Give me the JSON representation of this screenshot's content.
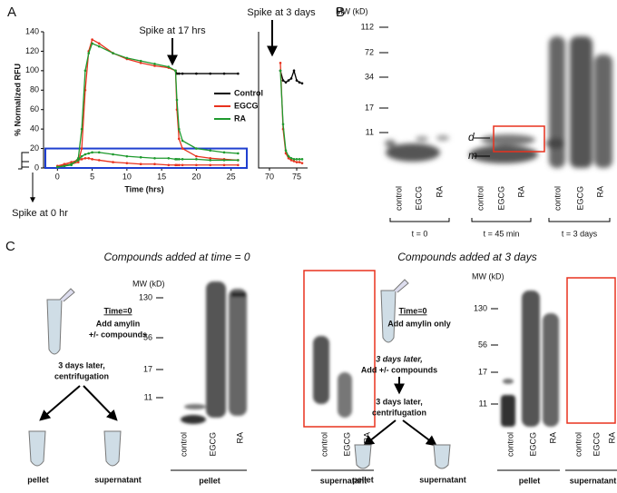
{
  "chart_data": [
    {
      "type": "line",
      "ylabel": "% Normalized RFU",
      "xlabel": "Time (hrs)",
      "x": [
        0,
        1,
        2,
        3,
        3.5,
        4,
        4.5,
        5,
        6,
        8,
        10,
        12,
        14,
        16,
        17,
        17.2,
        17.5,
        18,
        20,
        22,
        24,
        26
      ],
      "series": [
        {
          "name": "Control",
          "color": "#000000",
          "values": [
            null,
            null,
            null,
            null,
            null,
            null,
            null,
            null,
            null,
            null,
            null,
            null,
            null,
            null,
            100,
            97,
            97,
            97,
            97,
            97,
            97,
            97
          ]
        },
        {
          "name": "EGCG",
          "color": "#e8321e",
          "values": [
            2,
            3,
            4,
            6,
            20,
            80,
            120,
            132,
            128,
            118,
            112,
            108,
            105,
            103,
            100,
            60,
            30,
            20,
            12,
            10,
            9,
            8
          ]
        },
        {
          "name": "RA",
          "color": "#1f9a2e",
          "values": [
            1,
            2,
            3,
            10,
            40,
            100,
            118,
            128,
            125,
            118,
            113,
            110,
            107,
            104,
            100,
            70,
            40,
            28,
            20,
            18,
            16,
            15
          ]
        },
        {
          "color": "#e8321e",
          "values": [
            2,
            4,
            6,
            8,
            9,
            10,
            10,
            9,
            8,
            6,
            5,
            4,
            4,
            3,
            3,
            3,
            3,
            3,
            3,
            3,
            3,
            3
          ]
        },
        {
          "color": "#1f9a2e",
          "values": [
            1,
            2,
            4,
            8,
            12,
            14,
            15,
            16,
            16,
            14,
            12,
            11,
            10,
            10,
            9,
            9,
            9,
            9,
            9,
            8,
            8,
            8
          ]
        }
      ],
      "xlim": [
        -2,
        27
      ],
      "xticks": [
        0,
        5,
        10,
        15,
        20,
        25
      ],
      "ylim": [
        0,
        140
      ],
      "yticks": [
        0,
        20,
        40,
        60,
        80,
        100,
        120,
        140
      ],
      "legend": "right",
      "annotations": [
        "Spike at 17 hrs",
        "Spike at 0 hr"
      ]
    },
    {
      "type": "line",
      "x": [
        72,
        72.5,
        73,
        73.5,
        74,
        74.5,
        75,
        75.5,
        76
      ],
      "series": [
        {
          "color": "#000000",
          "values": [
            100,
            90,
            88,
            90,
            92,
            100,
            90,
            88,
            87
          ]
        },
        {
          "color": "#e8321e",
          "values": [
            108,
            40,
            15,
            10,
            8,
            7,
            6,
            6,
            5
          ]
        },
        {
          "color": "#1f9a2e",
          "values": [
            100,
            45,
            18,
            12,
            10,
            9,
            9,
            9,
            9
          ]
        }
      ],
      "xlim": [
        68,
        77
      ],
      "xticks": [
        70,
        75
      ],
      "ylim": [
        0,
        140
      ],
      "annotations": [
        "Spike at 3 days"
      ]
    }
  ],
  "panel_labels": [
    "A",
    "B",
    "C"
  ],
  "panel_b": {
    "mw_label": "MW (kD)",
    "markers": [
      112,
      72,
      34,
      17,
      11
    ],
    "band_labels": [
      "d",
      "m"
    ],
    "lanes": [
      "control",
      "EGCG",
      "RA"
    ],
    "groups": [
      "t = 0",
      "t = 45 min",
      "t = 3 days"
    ]
  },
  "panel_c": {
    "titles": [
      "Compounds added at time = 0",
      "Compounds added at 3 days"
    ],
    "protocol_left": [
      "Time=0",
      "Add amylin",
      "+/- compounds",
      "3 days later,",
      "centrifugation"
    ],
    "protocol_right": [
      "Time=0",
      "Add amylin only",
      "3 days later,",
      "Add +/- compounds",
      "3 days later,",
      "centrifugation"
    ],
    "mw_label": "MW (kD)",
    "markers": [
      130,
      56,
      17,
      11
    ],
    "lanes": [
      "control",
      "EGCG",
      "RA"
    ],
    "fractions": [
      "pellet",
      "supernatant"
    ]
  }
}
